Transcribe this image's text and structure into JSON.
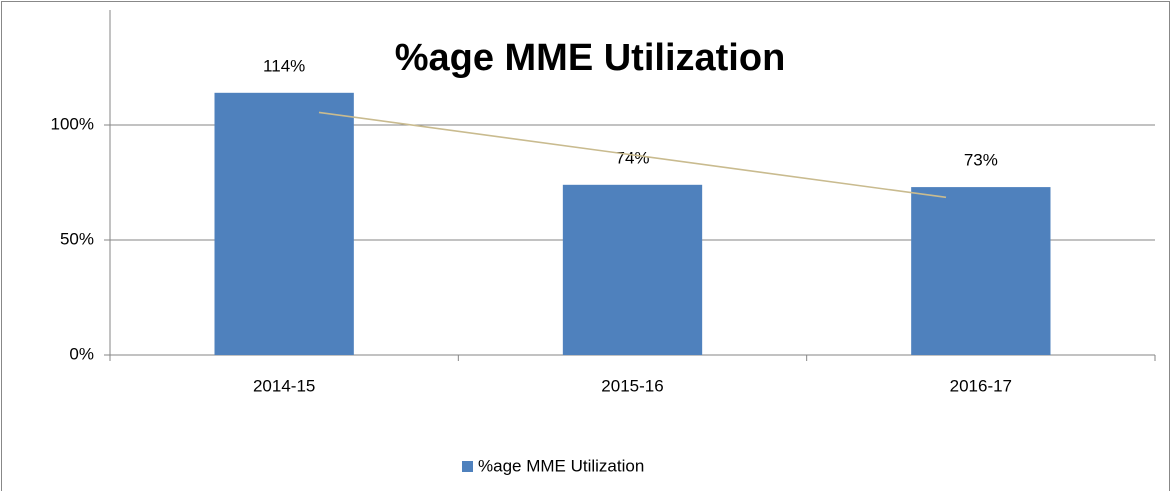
{
  "chart_data": {
    "type": "bar",
    "title": "%age MME Utilization",
    "categories": [
      "2014-15",
      "2015-16",
      "2016-17"
    ],
    "series": [
      {
        "name": "%age MME Utilization",
        "color": "#4f81bd",
        "values": [
          114,
          74,
          73
        ],
        "value_labels": [
          "114%",
          "74%",
          "73%"
        ]
      }
    ],
    "ylim": [
      0,
      150
    ],
    "yticks": [
      {
        "value": 0,
        "label": "0%"
      },
      {
        "value": 50,
        "label": "50%"
      },
      {
        "value": 100,
        "label": "100%"
      }
    ],
    "grid": true,
    "trendline": true,
    "trendline_color": "#c9bb8f",
    "legend": "bottom"
  }
}
